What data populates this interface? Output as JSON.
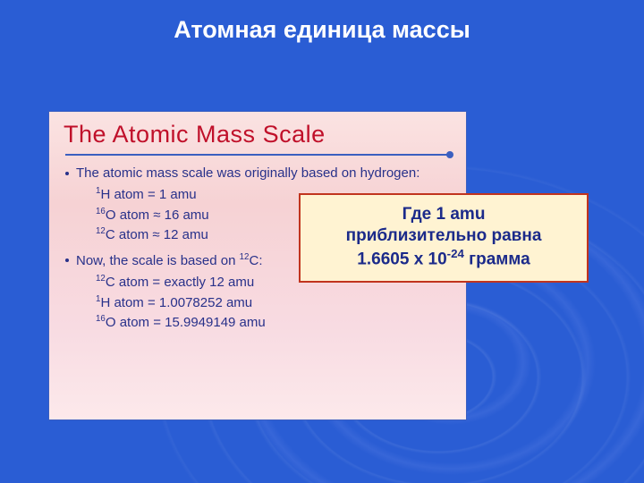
{
  "slide": {
    "title": "Атомная единица массы",
    "background_base": "#2a55c4",
    "title_color": "#ffffff",
    "title_fontsize": 27
  },
  "card": {
    "title": "The Atomic Mass Scale",
    "title_color": "#c0102a",
    "title_fontsize": 27,
    "body_color": "#28318a",
    "body_fontsize": 15,
    "background_gradient": [
      "#fbe3e2",
      "#f6d2d4",
      "#f8dbe2",
      "#fce9eb"
    ],
    "border_color": "#3b5fc0",
    "rule_color": "#3b5fc0",
    "items": [
      {
        "text": "The atomic mass scale was originally based on hydrogen:",
        "sub": [
          {
            "pre": "1",
            "sym": "H",
            "rest": " atom = 1 amu"
          },
          {
            "pre": "16",
            "sym": "O",
            "rest": " atom ≈ 16 amu"
          },
          {
            "pre": "12",
            "sym": "C",
            "rest": " atom ≈ 12 amu"
          }
        ]
      },
      {
        "text_prefix": "Now, the scale is based on ",
        "text_pre": "12",
        "text_sym": "C",
        "text_suffix": ":",
        "sub": [
          {
            "pre": "12",
            "sym": "C",
            "rest": " atom = exactly 12 amu"
          },
          {
            "pre": "1",
            "sym": "H",
            "rest": " atom = 1.0078252 amu"
          },
          {
            "pre": "16",
            "sym": "O",
            "rest": " atom = 15.9949149 amu"
          }
        ]
      }
    ]
  },
  "callout": {
    "line1": "Где 1 amu",
    "line2": "приблизительно равна",
    "value_prefix": "1.6605 х 10",
    "value_exp": "-24",
    "value_suffix": " грамма",
    "background": "#fff3d2",
    "border_color": "#c1341e",
    "text_color": "#1b2a8a",
    "fontsize": 19
  }
}
